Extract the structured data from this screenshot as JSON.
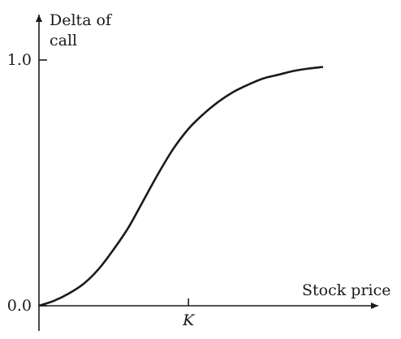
{
  "chart_data": {
    "type": "line",
    "title": "",
    "ylabel_line1": "Delta of",
    "ylabel_line2": "call",
    "xlabel": "Stock price",
    "y_ticks": [
      {
        "value": 1.0,
        "label": "1.0"
      },
      {
        "value": 0.0,
        "label": "0.0"
      }
    ],
    "x_marks": [
      {
        "value": 1.0,
        "label": "K"
      }
    ],
    "xlim": [
      0,
      2.0
    ],
    "ylim": [
      0,
      1.0
    ],
    "series": [
      {
        "x": [
          0.0,
          0.1,
          0.2,
          0.3,
          0.4,
          0.5,
          0.6,
          0.7,
          0.8,
          0.9,
          1.0,
          1.1,
          1.2,
          1.3,
          1.4,
          1.5,
          1.6,
          1.7,
          1.8,
          1.9
        ],
        "y": [
          0.0,
          0.02,
          0.05,
          0.09,
          0.15,
          0.23,
          0.32,
          0.43,
          0.54,
          0.64,
          0.72,
          0.78,
          0.83,
          0.87,
          0.9,
          0.925,
          0.94,
          0.955,
          0.965,
          0.972
        ]
      }
    ],
    "colors": {
      "axis": "#1a1a1a",
      "curve": "#1a1a1a"
    },
    "grid": false,
    "legend": "none"
  }
}
